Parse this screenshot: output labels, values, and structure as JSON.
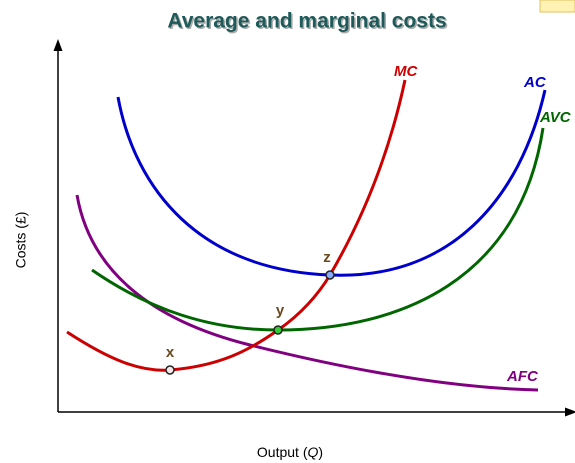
{
  "title": "Average and marginal costs",
  "y_axis": {
    "label": "Costs (£)"
  },
  "x_axis": {
    "label_start": "Output (",
    "label_variable": "Q",
    "label_end": ")"
  },
  "curves": [
    {
      "label": "MC",
      "color": "#cc0000"
    },
    {
      "label": "AC",
      "color": "#0000cc"
    },
    {
      "label": "AVC",
      "color": "#006600"
    },
    {
      "label": "AFC",
      "color": "#800080"
    }
  ],
  "points": [
    {
      "label": "x"
    },
    {
      "label": "y"
    },
    {
      "label": "z"
    }
  ]
}
